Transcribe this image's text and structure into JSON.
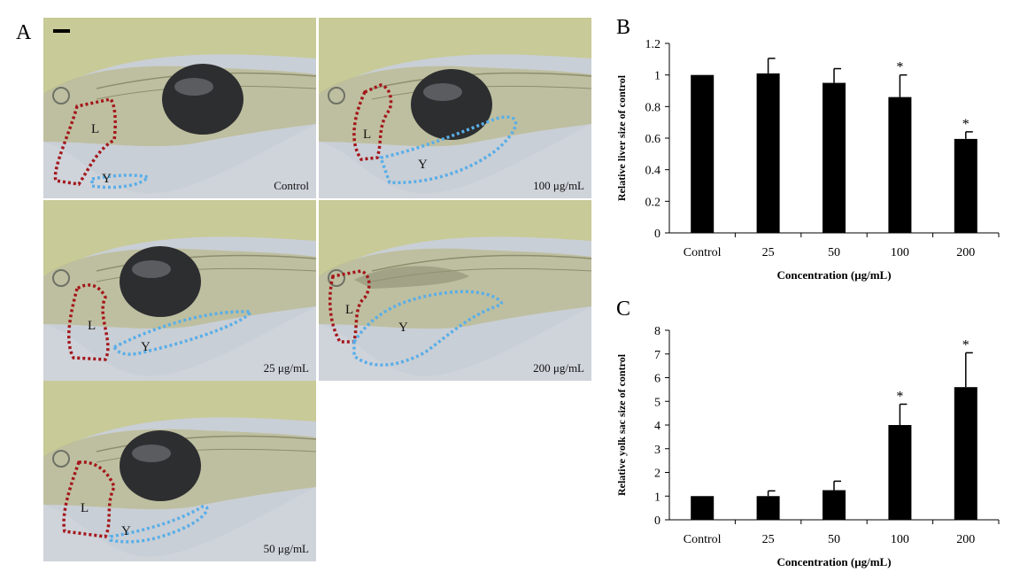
{
  "panels": {
    "a_letter": "A",
    "b_letter": "B",
    "c_letter": "C"
  },
  "micrographs": [
    {
      "label": "Control",
      "liver_mark": "L",
      "yolk_mark": "Y"
    },
    {
      "label": "100 μg/mL",
      "liver_mark": "L",
      "yolk_mark": "Y"
    },
    {
      "label": "25 μg/mL",
      "liver_mark": "L",
      "yolk_mark": "Y"
    },
    {
      "label": "200 μg/mL",
      "liver_mark": "L",
      "yolk_mark": "Y"
    },
    {
      "label": "50 μg/mL",
      "liver_mark": "L",
      "yolk_mark": "Y"
    }
  ],
  "colors": {
    "liver_outline": "#a4161a",
    "yolk_outline": "#5aaee8",
    "bar_fill": "#000000"
  },
  "chart_data": [
    {
      "type": "bar",
      "panel": "B",
      "categories": [
        "Control",
        "25",
        "50",
        "100",
        "200"
      ],
      "values": [
        1.0,
        1.01,
        0.95,
        0.86,
        0.595
      ],
      "errors": [
        0.0,
        0.095,
        0.09,
        0.14,
        0.045
      ],
      "significance": [
        "",
        "",
        "",
        "*",
        "*"
      ],
      "xlabel": "Concentration (μg/mL)",
      "ylabel": "Relative liver size of control",
      "ylim": [
        0,
        1.2
      ],
      "yticks": [
        "0",
        "0.2",
        "0.4",
        "0.6",
        "0.8",
        "1",
        "1.2"
      ],
      "grid": false
    },
    {
      "type": "bar",
      "panel": "C",
      "categories": [
        "Control",
        "25",
        "50",
        "100",
        "200"
      ],
      "values": [
        1.0,
        1.0,
        1.25,
        4.0,
        5.6
      ],
      "errors": [
        0.0,
        0.22,
        0.38,
        0.88,
        1.45
      ],
      "significance": [
        "",
        "",
        "",
        "*",
        "*"
      ],
      "xlabel": "Concentration (μg/mL)",
      "ylabel": "Relative yolk sac size of control",
      "ylim": [
        0,
        8
      ],
      "yticks": [
        "0",
        "1",
        "2",
        "3",
        "4",
        "5",
        "6",
        "7",
        "8"
      ],
      "grid": false
    }
  ]
}
